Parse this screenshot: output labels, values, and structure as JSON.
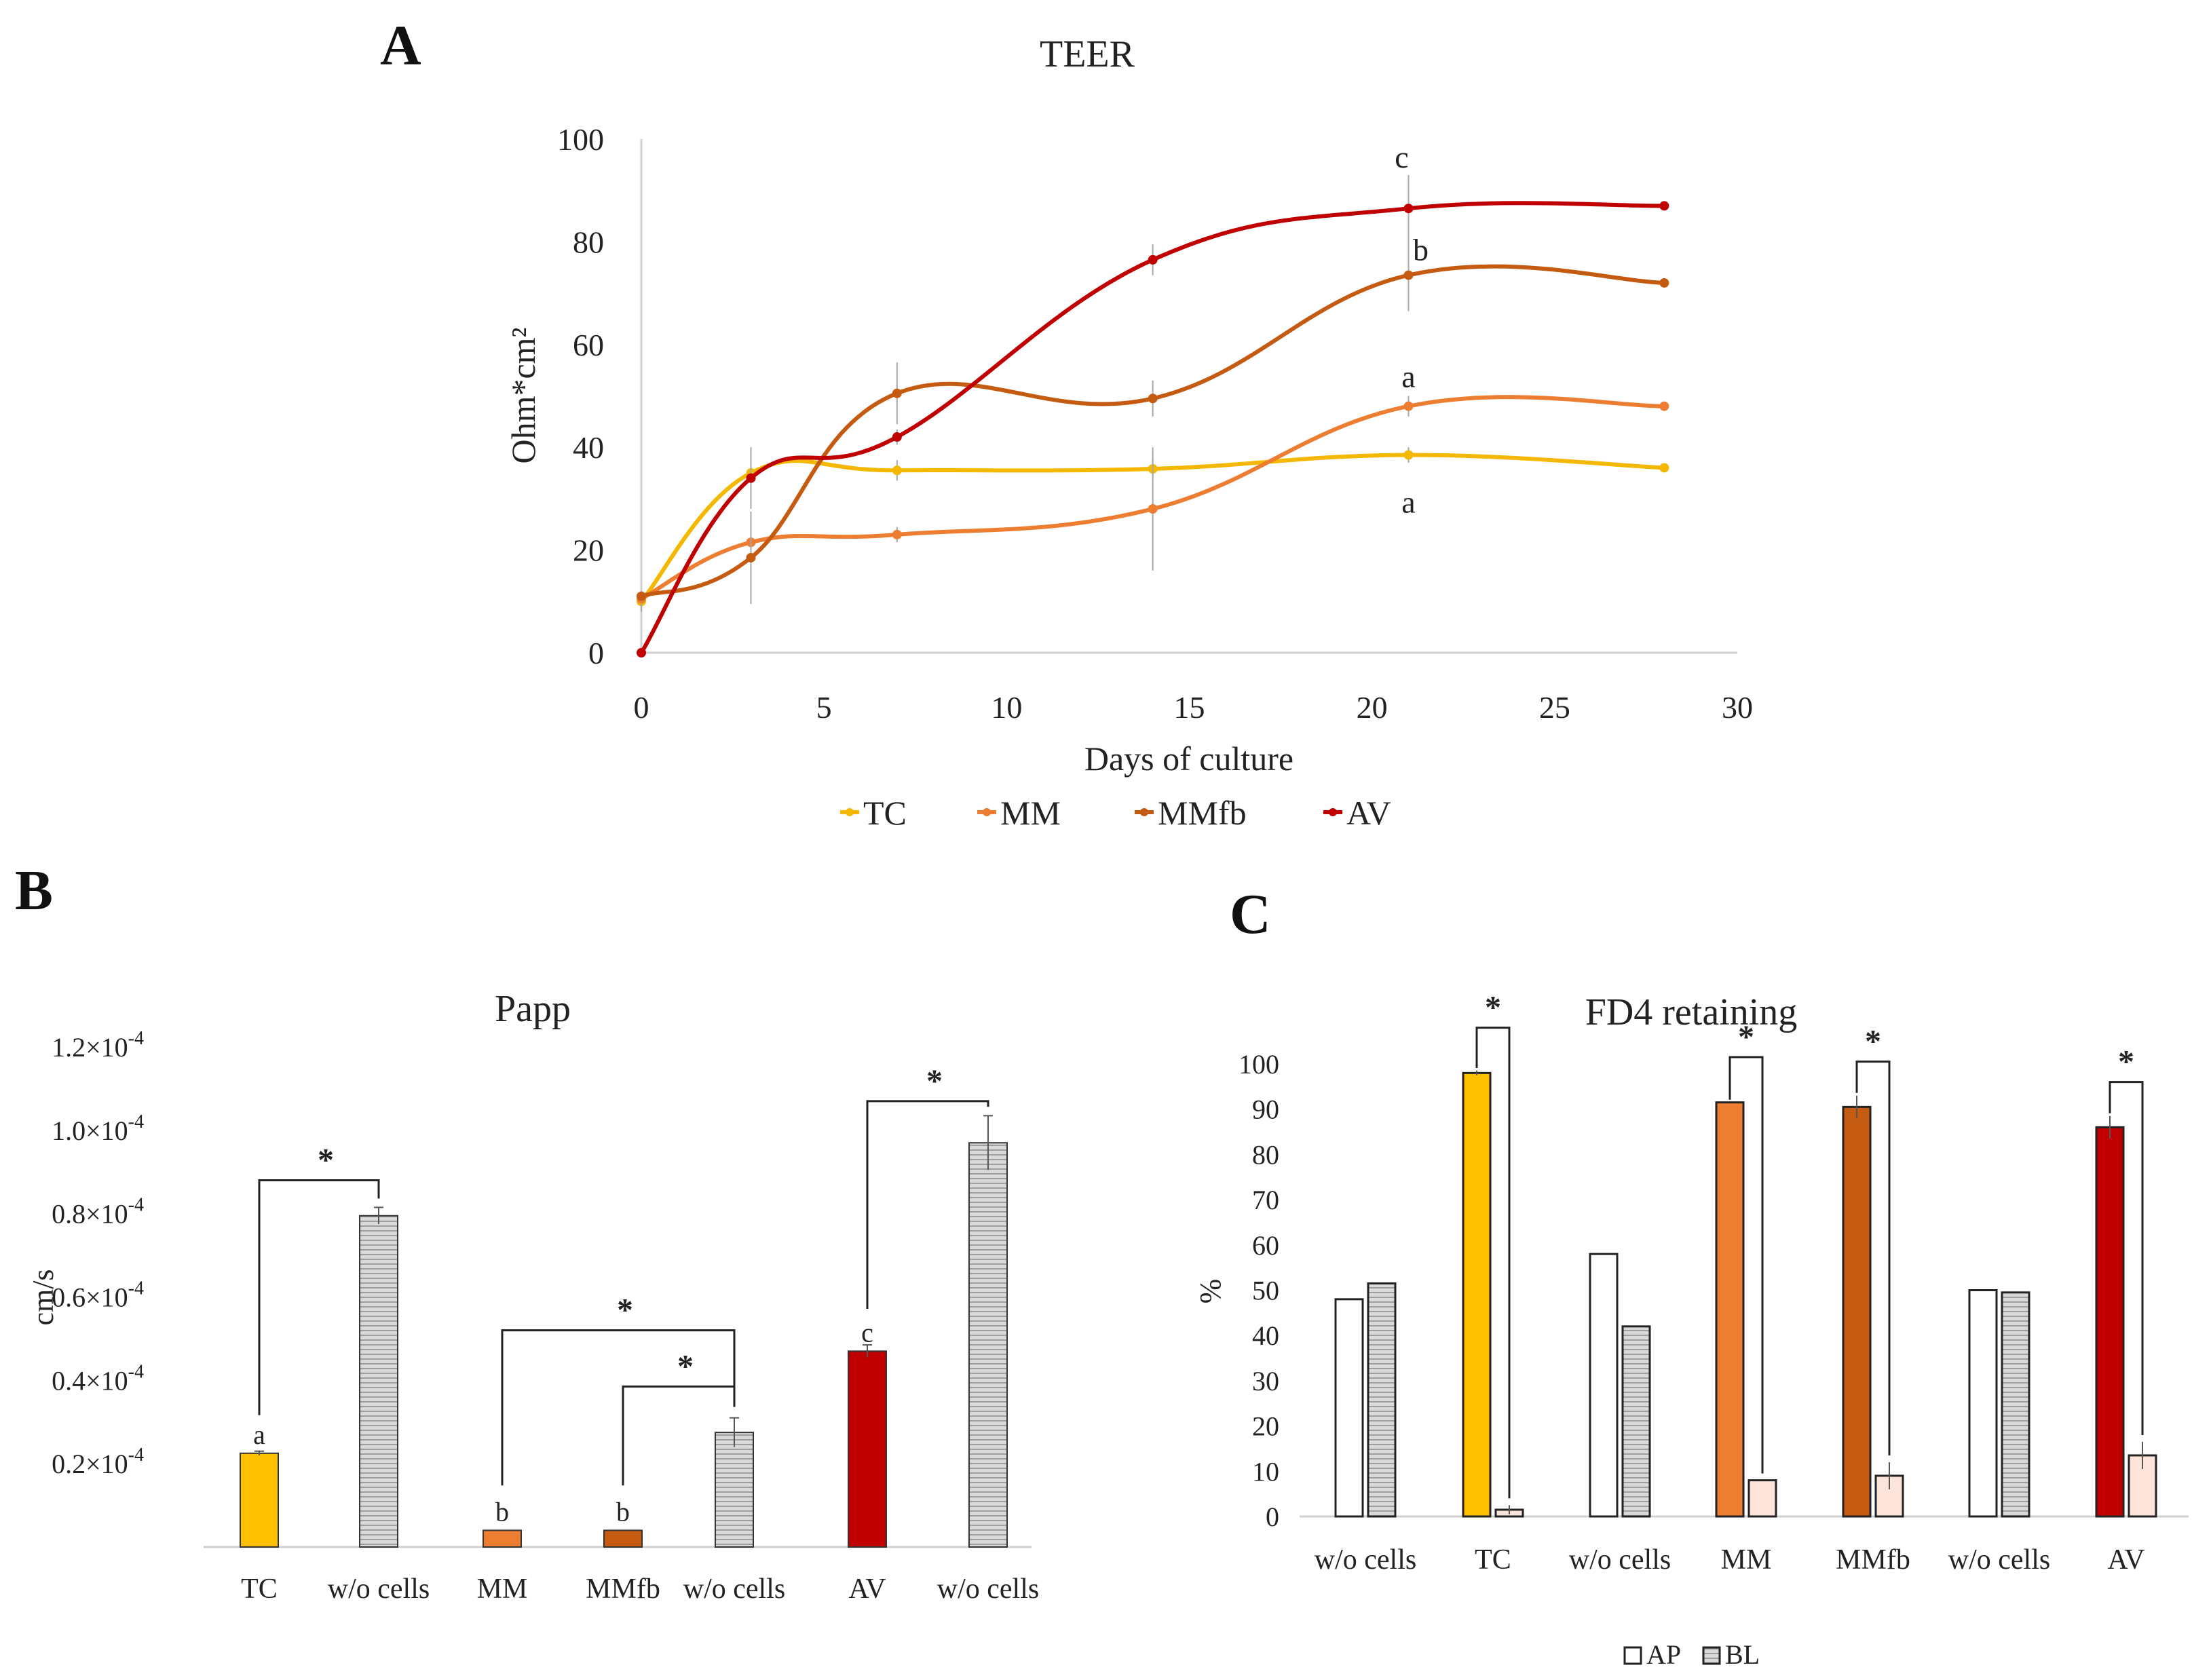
{
  "chart_data": [
    {
      "panel": "A",
      "type": "line",
      "title": "TEER",
      "xlabel": "Days of culture",
      "ylabel": "Ohm*cm²",
      "xlim": [
        0,
        30
      ],
      "ylim": [
        0,
        100
      ],
      "xticks": [
        "0",
        "5",
        "10",
        "15",
        "20",
        "25",
        "30"
      ],
      "yticks": [
        "0",
        "20",
        "40",
        "60",
        "80",
        "100"
      ],
      "series": [
        {
          "name": "TC",
          "color": "#F5B800",
          "x": [
            0,
            3,
            7,
            14,
            21,
            28
          ],
          "y": [
            10,
            35,
            35.5,
            35.8,
            38.5,
            36
          ],
          "err": [
            2,
            4,
            2,
            2,
            1.5,
            0
          ],
          "annotation": "a"
        },
        {
          "name": "MM",
          "color": "#ED7D31",
          "x": [
            0,
            3,
            7,
            14,
            21,
            28
          ],
          "y": [
            10.5,
            21.5,
            23,
            28,
            48,
            48
          ],
          "err": [
            1.5,
            3,
            1.5,
            12,
            2,
            0
          ],
          "annotation": "a"
        },
        {
          "name": "MMfb",
          "color": "#C55A11",
          "x": [
            0,
            3,
            7,
            14,
            21,
            28
          ],
          "y": [
            11,
            18.5,
            50.5,
            49.5,
            73.5,
            72
          ],
          "err": [
            1,
            9,
            6,
            3.5,
            7,
            0
          ],
          "annotation": "b"
        },
        {
          "name": "AV",
          "color": "#C00000",
          "x": [
            0,
            3,
            7,
            14,
            21,
            28
          ],
          "y": [
            0,
            34,
            42,
            76.5,
            86.5,
            87
          ],
          "err": [
            0,
            6,
            1.5,
            3,
            6.5,
            0
          ],
          "annotation": "c"
        }
      ]
    },
    {
      "panel": "B",
      "type": "bar",
      "title": "Papp",
      "ylabel": "cm/s",
      "ylim": [
        0,
        0.00012
      ],
      "ytick_values": [
        0.2,
        0.4,
        0.6,
        0.8,
        1.0,
        1.2
      ],
      "ytick_mantissa": [
        "0.2",
        "0.4",
        "0.6",
        "0.8",
        "1.0",
        "1.2"
      ],
      "ytick_times": "×10",
      "ytick_exp": "-4",
      "categories": [
        "TC",
        "w/o cells",
        "MM",
        "MMfb",
        "w/o cells",
        "AV",
        "w/o cells"
      ],
      "values": [
        2.25e-05,
        7.95e-05,
        4e-06,
        4e-06,
        2.75e-05,
        4.7e-05,
        9.7e-05
      ],
      "errors": [
        5e-07,
        2e-06,
        0,
        0,
        3.5e-06,
        1.5e-06,
        6.5e-06
      ],
      "colors": [
        "#FFC000",
        "hatch",
        "#ED7D31",
        "#C55A11",
        "hatch",
        "#C00000",
        "hatch"
      ],
      "labels": [
        "a",
        "",
        "b",
        "b",
        "",
        "c",
        ""
      ],
      "significance": [
        {
          "from": 0,
          "to": 1,
          "label": "*"
        },
        {
          "from": 2,
          "to": 4,
          "label": "*"
        },
        {
          "from": 3,
          "to": 4,
          "label": "*"
        },
        {
          "from": 5,
          "to": 6,
          "label": "*"
        }
      ]
    },
    {
      "panel": "C",
      "type": "bar",
      "title": "FD4 retaining",
      "ylabel": "%",
      "ylim": [
        0,
        100
      ],
      "yticks": [
        "0",
        "10",
        "20",
        "30",
        "40",
        "50",
        "60",
        "70",
        "80",
        "90",
        "100"
      ],
      "categories": [
        "w/o cells",
        "TC",
        "w/o cells",
        "MM",
        "MMfb",
        "w/o cells",
        "AV"
      ],
      "series": [
        {
          "name": "AP",
          "values": [
            48,
            98,
            58,
            91.5,
            90.5,
            50,
            86
          ]
        },
        {
          "name": "BL",
          "values": [
            51.5,
            1.5,
            42,
            8,
            9,
            49.5,
            13.5
          ]
        }
      ],
      "ap_colors": [
        "#FFFFFF",
        "#FFC000",
        "#FFFFFF",
        "#ED7D31",
        "#C55A11",
        "#FFFFFF",
        "#C00000"
      ],
      "bl_styles": [
        "hatch",
        "light",
        "hatch",
        "light",
        "light",
        "hatch",
        "light"
      ],
      "ap_errors": [
        0,
        0.5,
        0,
        0,
        2.5,
        0,
        2.5
      ],
      "bl_errors": [
        0,
        1,
        0,
        0,
        3,
        0,
        3
      ],
      "significance_groups": [
        1,
        3,
        4,
        6
      ],
      "significance_label": "*",
      "legend": [
        "AP",
        "BL"
      ]
    }
  ],
  "panel_labels": [
    "A",
    "B",
    "C"
  ]
}
